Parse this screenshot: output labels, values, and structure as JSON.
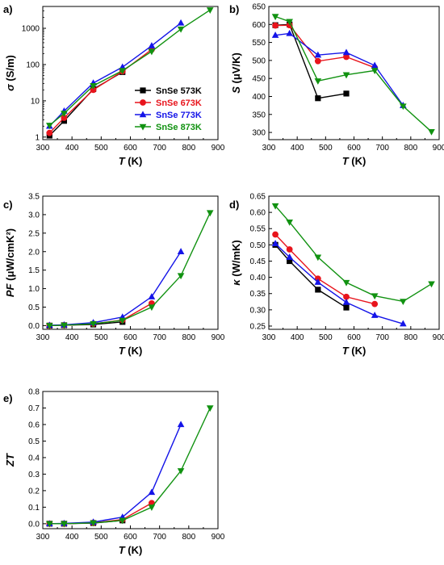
{
  "chart_data": [
    {
      "type": "line",
      "panel_label": "a)",
      "xlabel": "T (K)",
      "ylabel": "σ (S/m)",
      "yscale": "log",
      "xlim": [
        300,
        900
      ],
      "ylim": [
        0.85,
        4000
      ],
      "xticks": [
        300,
        400,
        500,
        600,
        700,
        800,
        900
      ],
      "yticks": [
        1,
        10,
        100,
        1000
      ],
      "legend": "lower-right",
      "series": [
        {
          "name": "SnSe 573K",
          "color": "#000000",
          "marker": "square",
          "x": [
            323,
            373,
            473,
            573
          ],
          "y": [
            1.1,
            2.8,
            21,
            62
          ]
        },
        {
          "name": "SnSe 673K",
          "color": "#e8141c",
          "marker": "circle",
          "x": [
            323,
            373,
            473,
            573,
            673
          ],
          "y": [
            1.3,
            3.4,
            20,
            65,
            260
          ]
        },
        {
          "name": "SnSe 773K",
          "color": "#1414e8",
          "marker": "triangle-up",
          "x": [
            323,
            373,
            473,
            573,
            673,
            773
          ],
          "y": [
            2.0,
            5.2,
            31,
            85,
            330,
            1400
          ]
        },
        {
          "name": "SnSe 873K",
          "color": "#119211",
          "marker": "triangle-down",
          "x": [
            323,
            373,
            473,
            573,
            673,
            773,
            873
          ],
          "y": [
            2.1,
            4.5,
            26,
            68,
            230,
            950,
            3200
          ]
        }
      ]
    },
    {
      "type": "line",
      "panel_label": "b)",
      "xlabel": "T (K)",
      "ylabel": "S (μV/K)",
      "xlim": [
        300,
        900
      ],
      "ylim": [
        280,
        650
      ],
      "xticks": [
        300,
        400,
        500,
        600,
        700,
        800,
        900
      ],
      "yticks": [
        300,
        350,
        400,
        450,
        500,
        550,
        600,
        650
      ],
      "series": [
        {
          "name": "SnSe 573K",
          "color": "#000000",
          "marker": "square",
          "x": [
            323,
            373,
            473,
            573
          ],
          "y": [
            598,
            600,
            395,
            408
          ]
        },
        {
          "name": "SnSe 673K",
          "color": "#e8141c",
          "marker": "circle",
          "x": [
            323,
            373,
            473,
            573,
            673
          ],
          "y": [
            597,
            598,
            498,
            510,
            480
          ]
        },
        {
          "name": "SnSe 773K",
          "color": "#1414e8",
          "marker": "triangle-up",
          "x": [
            323,
            373,
            473,
            573,
            673,
            773
          ],
          "y": [
            570,
            575,
            515,
            522,
            486,
            375
          ]
        },
        {
          "name": "SnSe 873K",
          "color": "#119211",
          "marker": "triangle-down",
          "x": [
            323,
            373,
            473,
            573,
            673,
            773,
            873
          ],
          "y": [
            622,
            608,
            443,
            460,
            472,
            373,
            302
          ]
        }
      ]
    },
    {
      "type": "line",
      "panel_label": "c)",
      "xlabel": "T (K)",
      "ylabel": "PF (μW/cmK²)",
      "xlim": [
        300,
        900
      ],
      "ylim": [
        -0.1,
        3.5
      ],
      "xticks": [
        300,
        400,
        500,
        600,
        700,
        800,
        900
      ],
      "yticks": [
        0.0,
        0.5,
        1.0,
        1.5,
        2.0,
        2.5,
        3.0,
        3.5
      ],
      "series": [
        {
          "name": "SnSe 573K",
          "color": "#000000",
          "marker": "square",
          "x": [
            323,
            373,
            473,
            573
          ],
          "y": [
            0.0,
            0.01,
            0.03,
            0.1
          ]
        },
        {
          "name": "SnSe 673K",
          "color": "#e8141c",
          "marker": "circle",
          "x": [
            323,
            373,
            473,
            573,
            673
          ],
          "y": [
            0.0,
            0.01,
            0.05,
            0.15,
            0.6
          ]
        },
        {
          "name": "SnSe 773K",
          "color": "#1414e8",
          "marker": "triangle-up",
          "x": [
            323,
            373,
            473,
            573,
            673,
            773
          ],
          "y": [
            0.01,
            0.02,
            0.08,
            0.23,
            0.78,
            2.0
          ]
        },
        {
          "name": "SnSe 873K",
          "color": "#119211",
          "marker": "triangle-down",
          "x": [
            323,
            373,
            473,
            573,
            673,
            773,
            873
          ],
          "y": [
            0.0,
            0.01,
            0.05,
            0.14,
            0.5,
            1.35,
            3.05
          ]
        }
      ]
    },
    {
      "type": "line",
      "panel_label": "d)",
      "xlabel": "T (K)",
      "ylabel": "κ (W/mK)",
      "xlim": [
        300,
        900
      ],
      "ylim": [
        0.24,
        0.65
      ],
      "xticks": [
        300,
        400,
        500,
        600,
        700,
        800,
        900
      ],
      "yticks": [
        0.25,
        0.3,
        0.35,
        0.4,
        0.45,
        0.5,
        0.55,
        0.6,
        0.65
      ],
      "series": [
        {
          "name": "SnSe 573K",
          "color": "#000000",
          "marker": "square",
          "x": [
            323,
            373,
            473,
            573
          ],
          "y": [
            0.5,
            0.45,
            0.362,
            0.307
          ]
        },
        {
          "name": "SnSe 673K",
          "color": "#e8141c",
          "marker": "circle",
          "x": [
            323,
            373,
            473,
            573,
            673
          ],
          "y": [
            0.532,
            0.486,
            0.396,
            0.34,
            0.318
          ]
        },
        {
          "name": "SnSe 773K",
          "color": "#1414e8",
          "marker": "triangle-up",
          "x": [
            323,
            373,
            473,
            573,
            673,
            773
          ],
          "y": [
            0.504,
            0.462,
            0.385,
            0.323,
            0.283,
            0.257
          ]
        },
        {
          "name": "SnSe 873K",
          "color": "#119211",
          "marker": "triangle-down",
          "x": [
            323,
            373,
            473,
            573,
            673,
            773,
            873
          ],
          "y": [
            0.62,
            0.57,
            0.462,
            0.384,
            0.343,
            0.326,
            0.38
          ]
        }
      ]
    },
    {
      "type": "line",
      "panel_label": "e)",
      "xlabel": "T (K)",
      "ylabel": "ZT",
      "xlim": [
        300,
        900
      ],
      "ylim": [
        -0.03,
        0.8
      ],
      "xticks": [
        300,
        400,
        500,
        600,
        700,
        800,
        900
      ],
      "yticks": [
        0.0,
        0.1,
        0.2,
        0.3,
        0.4,
        0.5,
        0.6,
        0.7,
        0.8
      ],
      "series": [
        {
          "name": "SnSe 573K",
          "color": "#000000",
          "marker": "square",
          "x": [
            323,
            373,
            473,
            573
          ],
          "y": [
            0.0,
            0.0,
            0.004,
            0.02
          ]
        },
        {
          "name": "SnSe 673K",
          "color": "#e8141c",
          "marker": "circle",
          "x": [
            323,
            373,
            473,
            573,
            673
          ],
          "y": [
            0.0,
            0.0,
            0.006,
            0.025,
            0.125
          ]
        },
        {
          "name": "SnSe 773K",
          "color": "#1414e8",
          "marker": "triangle-up",
          "x": [
            323,
            373,
            473,
            573,
            673,
            773
          ],
          "y": [
            0.0,
            0.002,
            0.01,
            0.04,
            0.19,
            0.6
          ]
        },
        {
          "name": "SnSe 873K",
          "color": "#119211",
          "marker": "triangle-down",
          "x": [
            323,
            373,
            473,
            573,
            673,
            773,
            873
          ],
          "y": [
            0.0,
            0.0,
            0.005,
            0.02,
            0.1,
            0.32,
            0.7
          ]
        }
      ]
    }
  ]
}
